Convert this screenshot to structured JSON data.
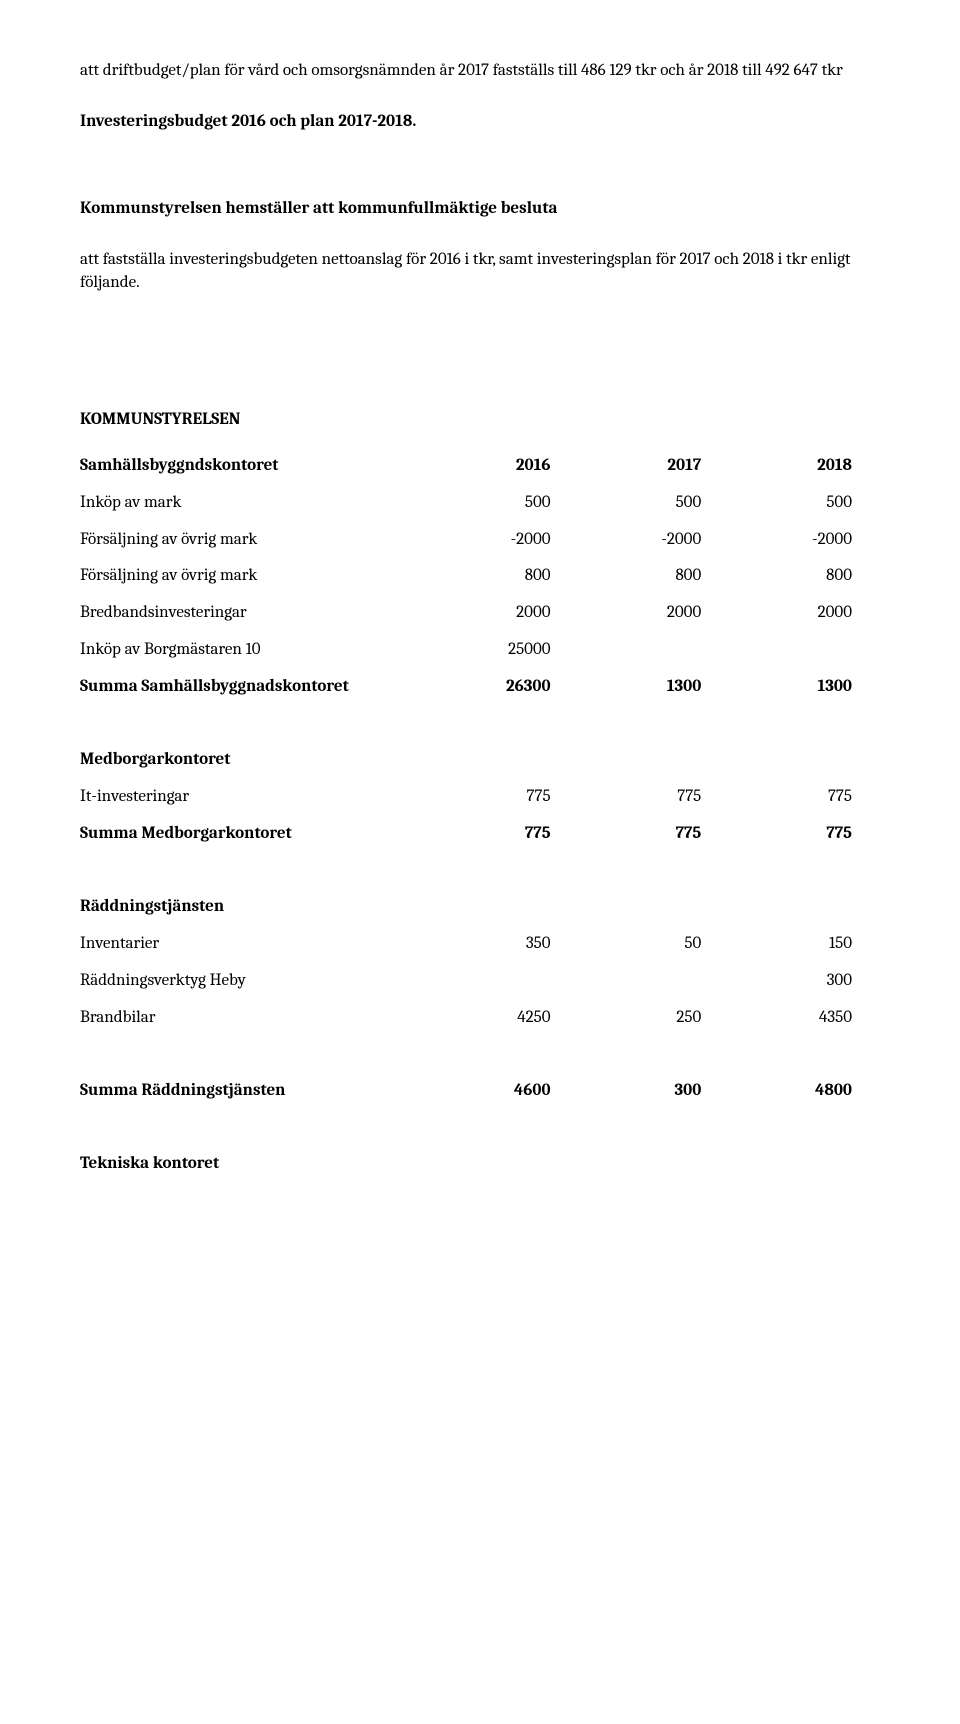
{
  "intro": {
    "p1": "att driftbudget/plan för vård och omsorgsnämnden år 2017 fastställs till 486 129 tkr och år 2018  till 492 647 tkr",
    "h1": "Investeringsbudget 2016 och plan 2017-2018.",
    "h2": "Kommunstyrelsen hemställer att kommunfullmäktige besluta",
    "p2": "att fastställa investeringsbudgeten nettoanslag för 2016 i tkr, samt investeringsplan för 2017 och 2018 i tkr enligt följande."
  },
  "ks": {
    "title": "KOMMUNSTYRELSEN",
    "header": {
      "label": "Samhällsbyggndskontoret",
      "c1": "2016",
      "c2": "2017",
      "c3": "2018"
    },
    "rows": [
      {
        "label": "Inköp av mark",
        "c1": "500",
        "c2": "500",
        "c3": "500"
      },
      {
        "label": "Försäljning av övrig mark",
        "c1": "-2000",
        "c2": "-2000",
        "c3": "-2000"
      },
      {
        "label": "Försäljning av övrig mark",
        "c1": "800",
        "c2": "800",
        "c3": "800"
      },
      {
        "label": "Bredbandsinvesteringar",
        "c1": "2000",
        "c2": "2000",
        "c3": "2000"
      },
      {
        "label": "Inköp av Borgmästaren 10",
        "c1": "25000",
        "c2": "",
        "c3": ""
      }
    ],
    "sum": {
      "label": "Summa Samhällsbyggnadskontoret",
      "c1": "26300",
      "c2": "1300",
      "c3": "1300"
    }
  },
  "med": {
    "header": {
      "label": "Medborgarkontoret"
    },
    "rows": [
      {
        "label": "It-investeringar",
        "c1": "775",
        "c2": "775",
        "c3": "775"
      }
    ],
    "sum": {
      "label": "Summa Medborgarkontoret",
      "c1": "775",
      "c2": "775",
      "c3": "775"
    }
  },
  "radd": {
    "header": {
      "label": "Räddningstjänsten"
    },
    "rows": [
      {
        "label": "Inventarier",
        "c1": "350",
        "c2": "50",
        "c3": "150"
      },
      {
        "label": "Räddningsverktyg Heby",
        "c1": "",
        "c2": "",
        "c3": "300"
      },
      {
        "label": "Brandbilar",
        "c1": "4250",
        "c2": "250",
        "c3": "4350"
      }
    ],
    "sum": {
      "label": "Summa Räddningstjänsten",
      "c1": "4600",
      "c2": "300",
      "c3": "4800"
    }
  },
  "tek": {
    "header": {
      "label": "Tekniska kontoret"
    }
  }
}
